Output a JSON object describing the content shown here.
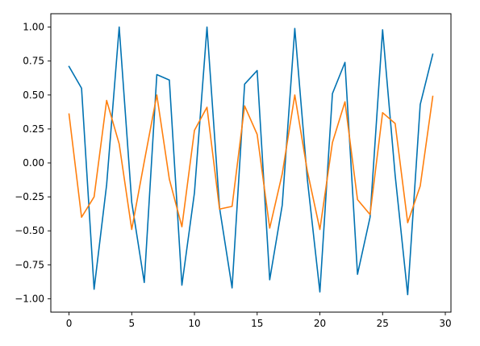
{
  "chart_data": {
    "type": "line",
    "title": "",
    "xlabel": "",
    "ylabel": "",
    "xlim": [
      -1.45,
      30.45
    ],
    "ylim": [
      -1.0985,
      1.0985
    ],
    "x": [
      0,
      1,
      2,
      3,
      4,
      5,
      6,
      7,
      8,
      9,
      10,
      11,
      12,
      13,
      14,
      15,
      16,
      17,
      18,
      19,
      20,
      21,
      22,
      23,
      24,
      25,
      26,
      27,
      28,
      29
    ],
    "xticks": [
      0,
      5,
      10,
      15,
      20,
      25,
      30
    ],
    "xtick_labels": [
      "0",
      "5",
      "10",
      "15",
      "20",
      "25",
      "30"
    ],
    "yticks": [
      -1.0,
      -0.75,
      -0.5,
      -0.25,
      0.0,
      0.25,
      0.5,
      0.75,
      1.0
    ],
    "ytick_labels": [
      "−1.00",
      "−0.75",
      "−0.50",
      "−0.25",
      "0.00",
      "0.25",
      "0.50",
      "0.75",
      "1.00"
    ],
    "grid": false,
    "legend": "none",
    "series": [
      {
        "color": "#0072b2",
        "values": [
          0.71,
          0.55,
          -0.93,
          -0.16,
          1.0,
          -0.29,
          -0.88,
          0.65,
          0.61,
          -0.9,
          -0.22,
          1.0,
          -0.33,
          -0.92,
          0.58,
          0.68,
          -0.86,
          -0.31,
          0.99,
          -0.12,
          -0.95,
          0.51,
          0.74,
          -0.82,
          -0.4,
          0.98,
          -0.09,
          -0.97,
          0.43,
          0.8
        ]
      },
      {
        "color": "#ff7f0e",
        "values": [
          0.36,
          -0.4,
          -0.25,
          0.46,
          0.14,
          -0.49,
          0.01,
          0.5,
          -0.12,
          -0.47,
          0.24,
          0.41,
          -0.34,
          -0.32,
          0.42,
          0.21,
          -0.48,
          -0.08,
          0.5,
          -0.06,
          -0.49,
          0.15,
          0.45,
          -0.27,
          -0.38,
          0.37,
          0.29,
          -0.44,
          -0.17,
          0.49
        ]
      }
    ]
  }
}
